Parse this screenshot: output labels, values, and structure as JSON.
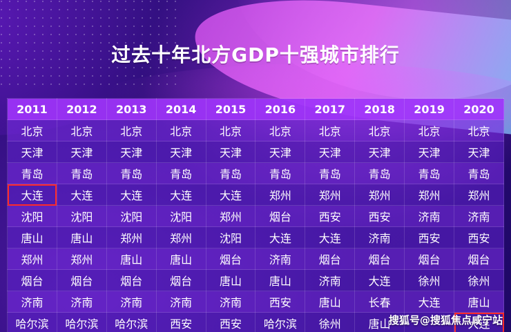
{
  "title": "过去十年北方GDP十强城市排行",
  "years": [
    "2011",
    "2012",
    "2013",
    "2014",
    "2015",
    "2016",
    "2017",
    "2018",
    "2019",
    "2020"
  ],
  "rows": [
    [
      "北京",
      "北京",
      "北京",
      "北京",
      "北京",
      "北京",
      "北京",
      "北京",
      "北京",
      "北京"
    ],
    [
      "天津",
      "天津",
      "天津",
      "天津",
      "天津",
      "天津",
      "天津",
      "天津",
      "天津",
      "天津"
    ],
    [
      "青岛",
      "青岛",
      "青岛",
      "青岛",
      "青岛",
      "青岛",
      "青岛",
      "青岛",
      "青岛",
      "青岛"
    ],
    [
      "大连",
      "大连",
      "大连",
      "大连",
      "大连",
      "郑州",
      "郑州",
      "郑州",
      "郑州",
      "郑州"
    ],
    [
      "沈阳",
      "沈阳",
      "沈阳",
      "沈阳",
      "郑州",
      "烟台",
      "西安",
      "西安",
      "济南",
      "济南"
    ],
    [
      "唐山",
      "唐山",
      "郑州",
      "郑州",
      "沈阳",
      "大连",
      "大连",
      "济南",
      "西安",
      "西安"
    ],
    [
      "郑州",
      "郑州",
      "唐山",
      "唐山",
      "烟台",
      "济南",
      "烟台",
      "烟台",
      "烟台",
      "烟台"
    ],
    [
      "烟台",
      "烟台",
      "烟台",
      "烟台",
      "唐山",
      "唐山",
      "济南",
      "大连",
      "徐州",
      "徐州"
    ],
    [
      "济南",
      "济南",
      "济南",
      "济南",
      "济南",
      "西安",
      "唐山",
      "长春",
      "大连",
      "唐山"
    ],
    [
      "哈尔滨",
      "哈尔滨",
      "哈尔滨",
      "西安",
      "西安",
      "哈尔滨",
      "徐州",
      "唐山",
      "",
      "大连"
    ]
  ],
  "highlights": [
    {
      "row": 3,
      "col": 0
    },
    {
      "row": 9,
      "col": 9
    }
  ],
  "watermark": "搜狐号@搜狐焦点咸宁站",
  "colors": {
    "highlight": "#ff2a2a",
    "header": "#9e34fa"
  }
}
